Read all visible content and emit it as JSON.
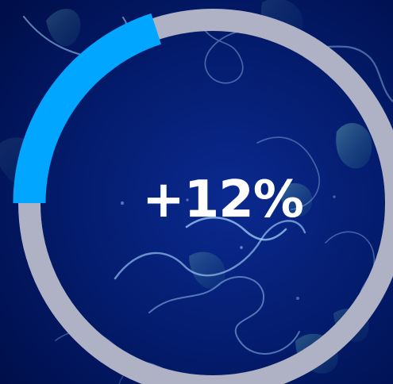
{
  "change_indicator": {
    "value_text": "+12%",
    "progress_fraction": 0.2
  },
  "colors": {
    "background": "#041a6b",
    "accent": "#00a6ff",
    "track": "#aeb2c4",
    "text": "#ffffff"
  }
}
